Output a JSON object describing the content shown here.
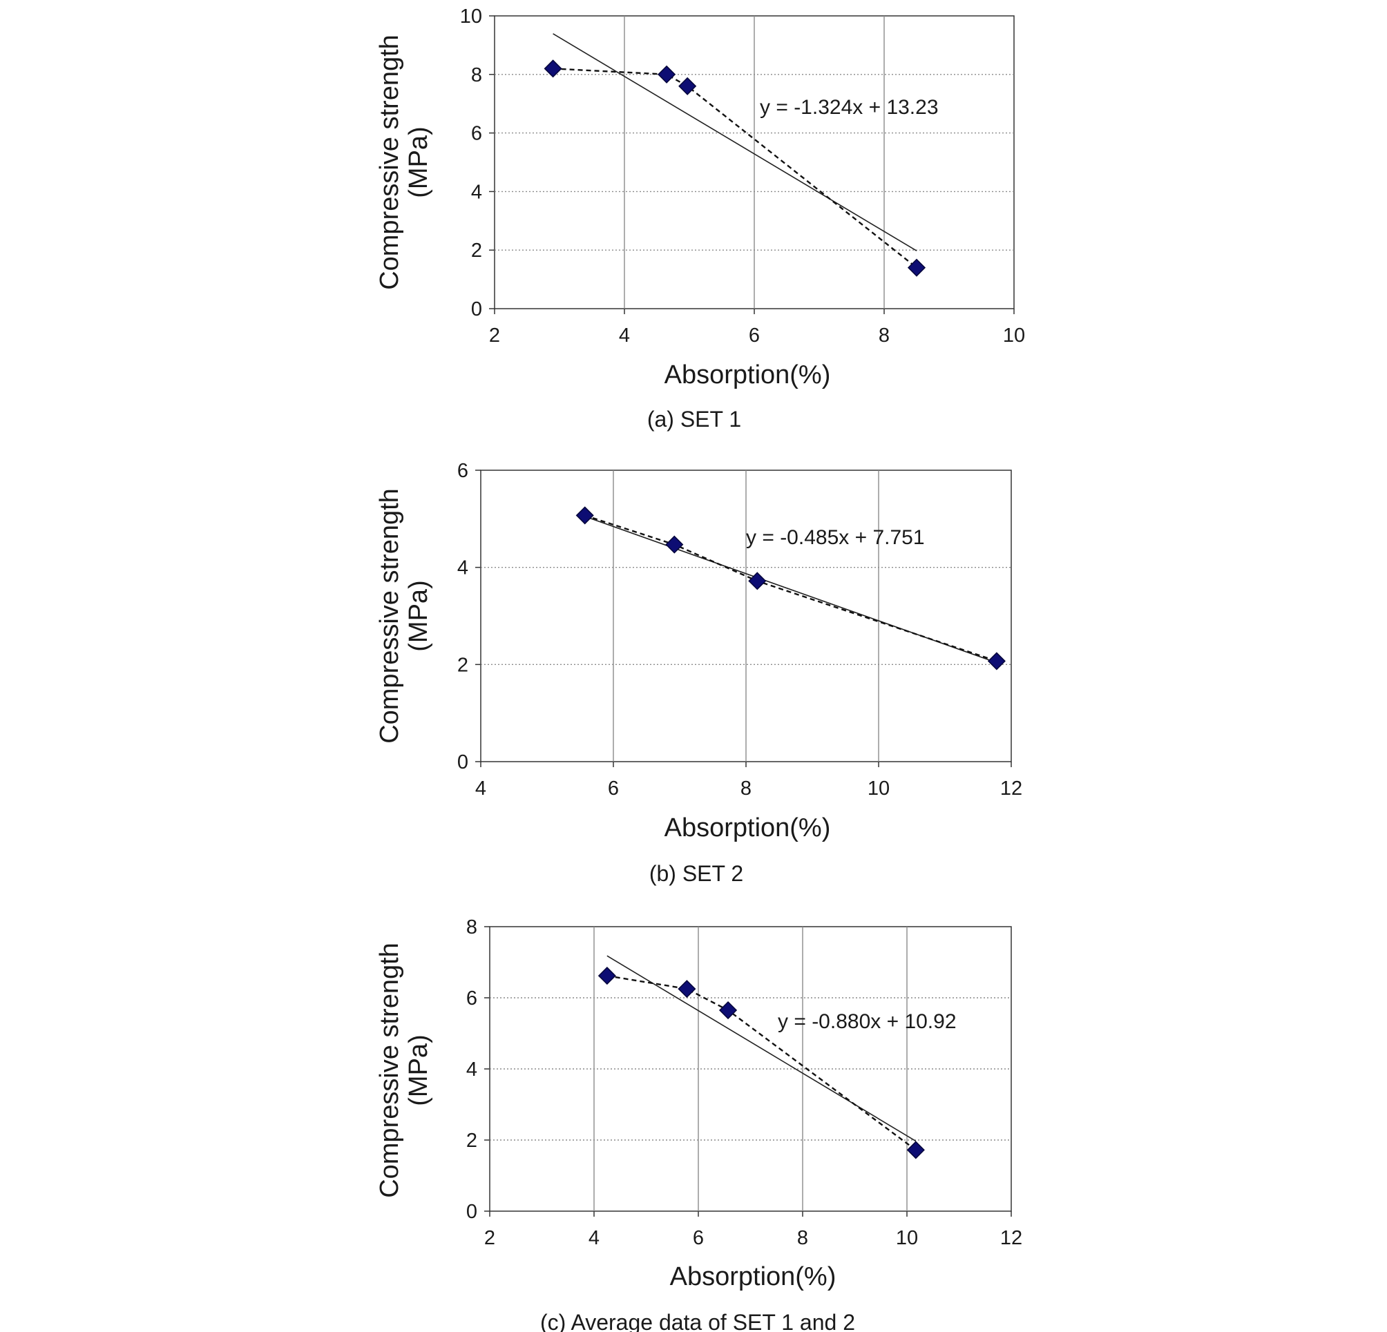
{
  "chart_data": [
    {
      "type": "scatter",
      "caption": "(a) SET 1",
      "xlabel": "Absorption(%)",
      "ylabel_line1": "Compressive strength",
      "ylabel_line2": "(MPa)",
      "xlim": [
        2,
        10
      ],
      "ylim": [
        0,
        10
      ],
      "xticks": [
        "2",
        "4",
        "6",
        "8",
        "10"
      ],
      "yticks": [
        "0",
        "2",
        "4",
        "6",
        "8",
        "10"
      ],
      "grid": true,
      "points": [
        {
          "x": 2.9,
          "y": 8.2
        },
        {
          "x": 4.65,
          "y": 8.0
        },
        {
          "x": 4.97,
          "y": 7.6
        },
        {
          "x": 8.5,
          "y": 1.4
        }
      ],
      "trendline": {
        "x_start": 2.9,
        "x_end": 8.5,
        "slope": -1.324,
        "intercept": 13.23
      },
      "equation": "y = -1.324x + 13.23"
    },
    {
      "type": "scatter",
      "caption": "(b) SET 2",
      "xlabel": "Absorption(%)",
      "ylabel_line1": "Compressive strength",
      "ylabel_line2": "(MPa)",
      "xlim": [
        4,
        12
      ],
      "ylim": [
        0,
        6
      ],
      "xticks": [
        "4",
        "6",
        "8",
        "10",
        "12"
      ],
      "yticks": [
        "0",
        "2",
        "4",
        "6"
      ],
      "grid": true,
      "points": [
        {
          "x": 5.57,
          "y": 5.07
        },
        {
          "x": 6.92,
          "y": 4.47
        },
        {
          "x": 8.17,
          "y": 3.72
        },
        {
          "x": 11.78,
          "y": 2.07
        }
      ],
      "trendline": {
        "x_start": 5.57,
        "x_end": 11.78,
        "slope": -0.485,
        "intercept": 7.751
      },
      "equation": "y = -0.485x + 7.751"
    },
    {
      "type": "scatter",
      "caption": "(c) Average data of SET 1 and 2",
      "xlabel": "Absorption(%)",
      "ylabel_line1": "Compressive strength",
      "ylabel_line2": "(MPa)",
      "xlim": [
        2,
        12
      ],
      "ylim": [
        0,
        8
      ],
      "xticks": [
        "2",
        "4",
        "6",
        "8",
        "10",
        "12"
      ],
      "yticks": [
        "0",
        "2",
        "4",
        "6",
        "8"
      ],
      "grid": true,
      "points": [
        {
          "x": 4.25,
          "y": 6.62
        },
        {
          "x": 5.78,
          "y": 6.25
        },
        {
          "x": 6.57,
          "y": 5.65
        },
        {
          "x": 10.17,
          "y": 1.72
        }
      ],
      "trendline": {
        "x_start": 4.25,
        "x_end": 10.17,
        "slope": -0.88,
        "intercept": 10.92
      },
      "equation": "y = -0.880x + 10.92"
    }
  ],
  "colors": {
    "marker_fill": "#0d0d73",
    "marker_stroke": "#05053a",
    "trend_line": "#222222",
    "dashed_line": "#111111",
    "grid": "#8a8a8a",
    "axis": "#333333"
  }
}
